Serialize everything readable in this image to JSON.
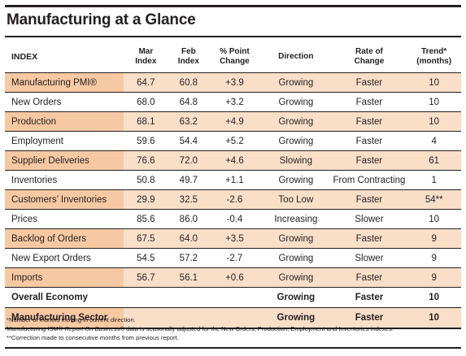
{
  "title": "Manufacturing at a Glance",
  "headers": {
    "index": "INDEX",
    "mar": [
      "Mar",
      "Index"
    ],
    "feb": [
      "Feb",
      "Index"
    ],
    "change": [
      "% Point",
      "Change"
    ],
    "direction": "Direction",
    "rate": [
      "Rate of",
      "Change"
    ],
    "trend": [
      "Trend*",
      "(months)"
    ]
  },
  "rows": [
    {
      "index": "Manufacturing PMI®",
      "mar": "64.7",
      "feb": "60.8",
      "change": "+3.9",
      "direction": "Growing",
      "rate": "Faster",
      "trend": "10"
    },
    {
      "index": "New Orders",
      "mar": "68.0",
      "feb": "64.8",
      "change": "+3.2",
      "direction": "Growing",
      "rate": "Faster",
      "trend": "10"
    },
    {
      "index": "Production",
      "mar": "68.1",
      "feb": "63.2",
      "change": "+4.9",
      "direction": "Growing",
      "rate": "Faster",
      "trend": "10"
    },
    {
      "index": "Employment",
      "mar": "59.6",
      "feb": "54.4",
      "change": "+5.2",
      "direction": "Growing",
      "rate": "Faster",
      "trend": "4"
    },
    {
      "index": "Supplier Deliveries",
      "mar": "76.6",
      "feb": "72.0",
      "change": "+4.6",
      "direction": "Slowing",
      "rate": "Faster",
      "trend": "61"
    },
    {
      "index": "Inventories",
      "mar": "50.8",
      "feb": "49.7",
      "change": "+1.1",
      "direction": "Growing",
      "rate": "From Contracting",
      "trend": "1"
    },
    {
      "index": "Customers’ Inventories",
      "mar": "29.9",
      "feb": "32.5",
      "change": "-2.6",
      "direction": "Too Low",
      "rate": "Faster",
      "trend": "54**"
    },
    {
      "index": "Prices",
      "mar": "85.6",
      "feb": "86.0",
      "change": "-0.4",
      "direction": "Increasing",
      "rate": "Slower",
      "trend": "10"
    },
    {
      "index": "Backlog of Orders",
      "mar": "67.5",
      "feb": "64.0",
      "change": "+3.5",
      "direction": "Growing",
      "rate": "Faster",
      "trend": "9"
    },
    {
      "index": "New Export Orders",
      "mar": "54.5",
      "feb": "57.2",
      "change": "-2.7",
      "direction": "Growing",
      "rate": "Slower",
      "trend": "9"
    },
    {
      "index": "Imports",
      "mar": "56.7",
      "feb": "56.1",
      "change": "+0.6",
      "direction": "Growing",
      "rate": "Faster",
      "trend": "9"
    }
  ],
  "summary": [
    {
      "index": "Overall Economy",
      "direction": "Growing",
      "rate": "Faster",
      "trend": "10"
    },
    {
      "index": "Manufacturing Sector",
      "direction": "Growing",
      "rate": "Faster",
      "trend": "10"
    }
  ],
  "notes": {
    "note1": "*Number of months moving in current direction.",
    "note2_prefix": "Manufacturing ISM® ",
    "note2_italic": "Report On Business",
    "note2_suffix": "® data is seasonally adjusted for the New Orders, Production, Employment and Inventories indexes.",
    "note3": "**Correction made to consecutive months from previous report."
  },
  "colors": {
    "shade_light": "#fadfc8",
    "shade_dark": "#f7c9a3",
    "text": "#231f20"
  }
}
